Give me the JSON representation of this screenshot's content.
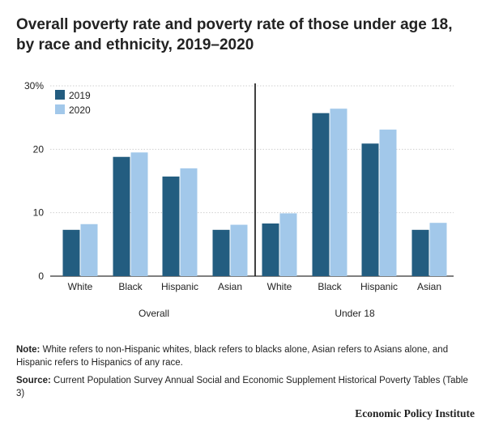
{
  "title": "Overall poverty rate and poverty rate of those under age 18, by race and ethnicity, 2019–2020",
  "notes": {
    "note_label": "Note:",
    "note_text": "White refers to non-Hispanic whites, black refers to blacks alone, Asian refers to Asians alone, and Hispanic refers to Hispanics of any race.",
    "source_label": "Source:",
    "source_text": "Current Population Survey Annual Social and Economic Supplement Historical Poverty Tables (Table 3)"
  },
  "brand": "Economic Policy Institute",
  "colors": {
    "series_2019": "#235d80",
    "series_2020": "#a2c8ea"
  },
  "chart_data": {
    "type": "bar",
    "title": "Overall poverty rate and poverty rate of those under age 18, by race and ethnicity, 2019–2020",
    "ylim": [
      0,
      30
    ],
    "yticks": [
      {
        "value": 0,
        "label": "0"
      },
      {
        "value": 10,
        "label": "10"
      },
      {
        "value": 20,
        "label": "20"
      },
      {
        "value": 30,
        "label": "30%"
      }
    ],
    "grid": true,
    "legend_position": "top-left",
    "groups": [
      {
        "name": "Overall",
        "categories": [
          "White",
          "Black",
          "Hispanic",
          "Asian"
        ]
      },
      {
        "name": "Under 18",
        "categories": [
          "White",
          "Black",
          "Hispanic",
          "Asian"
        ]
      }
    ],
    "series": [
      {
        "name": "2019",
        "color": "#235d80",
        "values": [
          [
            7.3,
            18.8,
            15.7,
            7.3
          ],
          [
            8.3,
            25.7,
            20.9,
            7.3
          ]
        ]
      },
      {
        "name": "2020",
        "color": "#a2c8ea",
        "values": [
          [
            8.2,
            19.5,
            17.0,
            8.1
          ],
          [
            9.9,
            26.4,
            23.1,
            8.4
          ]
        ]
      }
    ]
  }
}
